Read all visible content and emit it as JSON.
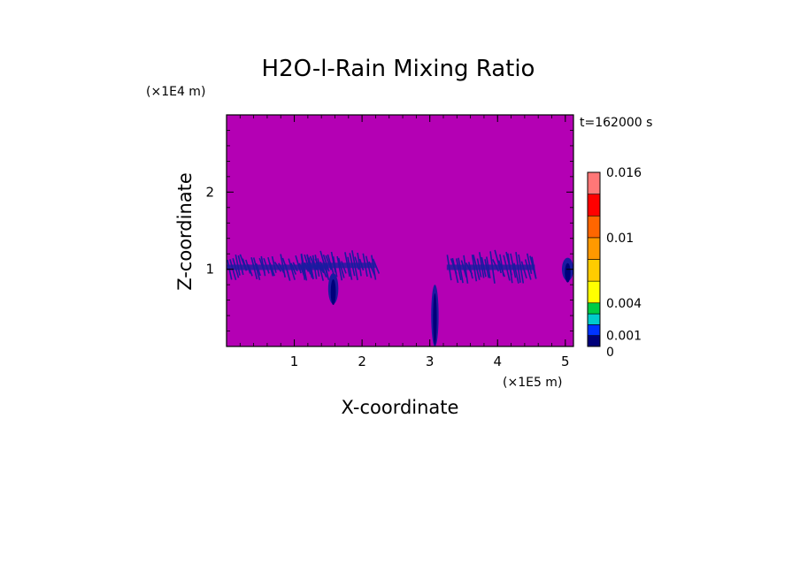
{
  "chart_data": {
    "type": "heatmap",
    "title": "H2O-l-Rain Mixing Ratio",
    "xlabel": "X-coordinate",
    "ylabel": "Z-coordinate",
    "x_unit": "(×1E5 m)",
    "y_unit": "(×1E4 m)",
    "time_label": "t=162000 s",
    "xlim": [
      0,
      5.12
    ],
    "ylim": [
      0,
      3.0
    ],
    "x_ticks": [
      1,
      2,
      3,
      4,
      5
    ],
    "y_ticks": [
      1,
      2
    ],
    "colorbar": {
      "levels": [
        0,
        0.001,
        0.002,
        0.003,
        0.004,
        0.006,
        0.008,
        0.01,
        0.012,
        0.014,
        0.016
      ],
      "colors": [
        "#00007a",
        "#0033ff",
        "#00cccc",
        "#00cc44",
        "#ffff00",
        "#ffcc00",
        "#ff9900",
        "#ff6600",
        "#ff0000",
        "#ff7777",
        "#ffcccc"
      ],
      "tick_labels": [
        "0",
        "0.001",
        "0.004",
        "0.01",
        "0.016"
      ],
      "tick_values": [
        0,
        0.001,
        0.004,
        0.01,
        0.016
      ]
    },
    "background_color": "#b400b4",
    "field_notes_value_color": "#1a1aa0",
    "regions": [
      {
        "x_start": 0.0,
        "x_end": 1.5,
        "z_bottom": 0.85,
        "z_top": 1.2,
        "value": 0.0005
      },
      {
        "x_start": 1.1,
        "x_end": 2.2,
        "z_bottom": 0.85,
        "z_top": 1.25,
        "value": 0.0005
      },
      {
        "x_start": 3.25,
        "x_end": 4.55,
        "z_bottom": 0.8,
        "z_top": 1.25,
        "value": 0.0005
      },
      {
        "x_start": 4.95,
        "x_end": 5.12,
        "z_bottom": 0.85,
        "z_top": 1.15,
        "value": 0.0005
      },
      {
        "x_start": 3.02,
        "x_end": 3.13,
        "z_bottom": 0.0,
        "z_top": 0.8,
        "value": 0.0008
      },
      {
        "x_start": 1.5,
        "x_end": 1.65,
        "z_bottom": 0.55,
        "z_top": 0.95,
        "value": 0.0005
      }
    ]
  }
}
